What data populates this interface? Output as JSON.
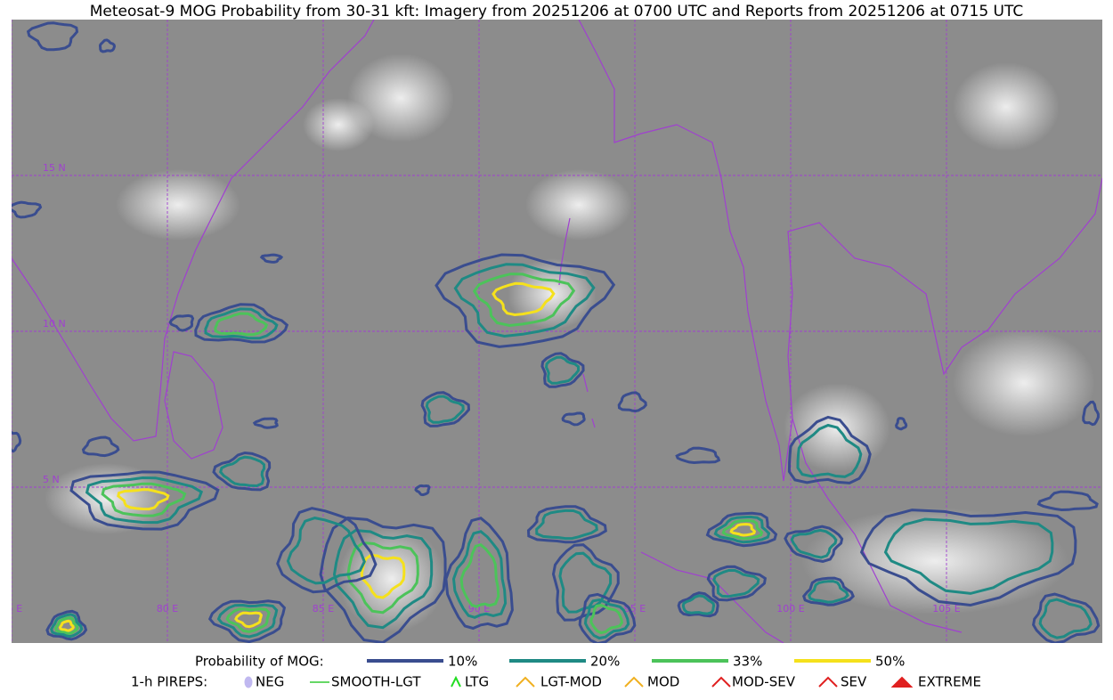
{
  "title": "Meteosat-9 MOG Probability from 30-31 kft: Imagery from 20251206 at 0700 UTC and Reports from 20251206 at 0715 UTC",
  "map": {
    "lat_lines": [
      {
        "value": 15,
        "label": "15 N"
      },
      {
        "value": 10,
        "label": "10 N"
      },
      {
        "value": 5,
        "label": "5 N"
      }
    ],
    "lon_lines": [
      {
        "value": 75,
        "label": "75 E"
      },
      {
        "value": 80,
        "label": "80 E"
      },
      {
        "value": 85,
        "label": "85 E"
      },
      {
        "value": 90,
        "label": "90 E"
      },
      {
        "value": 95,
        "label": "95 E"
      },
      {
        "value": 100,
        "label": "100 E"
      },
      {
        "value": 105,
        "label": "105 E"
      }
    ]
  },
  "legend": {
    "probability_title": "Probability of MOG:",
    "probability_levels": [
      {
        "label": "10%",
        "color": "#3a4d8f"
      },
      {
        "label": "20%",
        "color": "#1f8a84"
      },
      {
        "label": "33%",
        "color": "#4cc35a"
      },
      {
        "label": "50%",
        "color": "#f5e11c"
      }
    ],
    "pireps_title": "1-h PIREPS:",
    "pireps": [
      {
        "label": "NEG",
        "color": "#c0b8f0"
      },
      {
        "label": "SMOOTH-LGT",
        "color": "#33cc33"
      },
      {
        "label": "LTG",
        "color": "#22dd22"
      },
      {
        "label": "LGT-MOD",
        "color": "#f0b020"
      },
      {
        "label": "MOD",
        "color": "#f0b020"
      },
      {
        "label": "MOD-SEV",
        "color": "#e02020"
      },
      {
        "label": "SEV",
        "color": "#e02020"
      },
      {
        "label": "EXTREME",
        "color": "#e02020"
      }
    ]
  }
}
